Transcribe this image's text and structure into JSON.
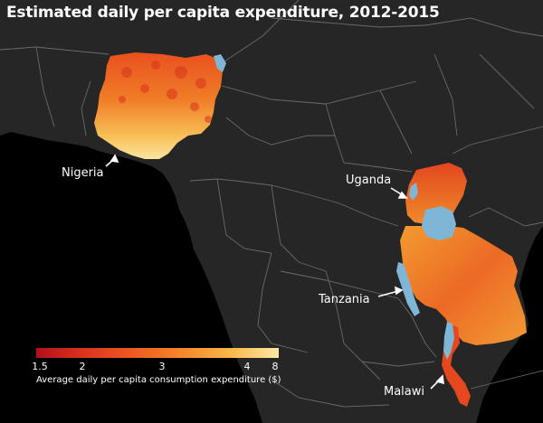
{
  "title": "Estimated daily per capita expenditure, 2012-2015",
  "labels": {
    "nigeria": "Nigeria",
    "uganda": "Uganda",
    "tanzania": "Tanzania",
    "malawi": "Malawi"
  },
  "legend": {
    "ticks": [
      "1.5",
      "2",
      "3",
      "4",
      "8"
    ],
    "caption": "Average daily per capita consumption expenditure ($)"
  },
  "colors": {
    "land": "#262626",
    "ocean": "#000000",
    "lake": "#7fb6d6",
    "border": "#6a6a6a",
    "scale_low": "#b1101b",
    "scale_mid": "#ef5a22",
    "scale_high": "#fde8a6"
  }
}
